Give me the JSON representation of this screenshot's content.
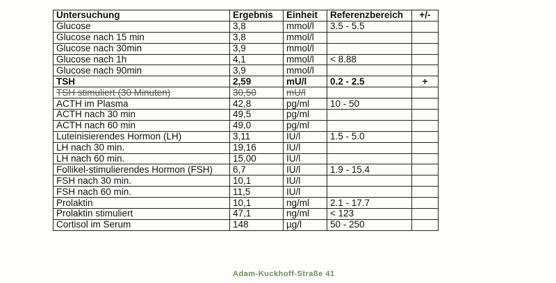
{
  "table": {
    "header": [
      "Untersuchung",
      "Ergebnis",
      "Einheit",
      "Referenzbereich",
      "+/-"
    ],
    "rows": [
      {
        "name": "Glucose",
        "result": "3,8",
        "unit": "mmol/l",
        "range": "3.5 - 5.5"
      },
      {
        "name": "Glucose nach 15 min",
        "result": "3,8",
        "unit": "mmol/l"
      },
      {
        "name": "Glucose nach 30min",
        "result": "3,9",
        "unit": "mmol/l"
      },
      {
        "name": "Glucose nach 1h",
        "result": "4,1",
        "unit": "mmol/l",
        "range": "< 8.88"
      },
      {
        "name": "Glucose nach 90min",
        "result": "3,9",
        "unit": "mmol/l"
      },
      {
        "name": "TSH",
        "result": "2,59",
        "unit": "mU/l",
        "range": "0.2 - 2.5",
        "flag": "+",
        "bold": true
      },
      {
        "name": "TSH stimuliert (30 Minuten)",
        "result": "30,50",
        "unit": "mU/l",
        "struck": true
      },
      {
        "name": "ACTH im Plasma",
        "result": "42,8",
        "unit": "pg/ml",
        "range": "10 - 50"
      },
      {
        "name": "ACTH nach 30 min",
        "result": "49,5",
        "unit": "pg/ml"
      },
      {
        "name": "ACTH nach 60 min",
        "result": "49,0",
        "unit": "pg/ml"
      },
      {
        "name": "Luteinisierendes Hormon (LH)",
        "result": "3,11",
        "unit": "IU/l",
        "range": "1.5 - 5.0"
      },
      {
        "name": "LH nach 30 min.",
        "result": "19,16",
        "unit": "IU/l"
      },
      {
        "name": "LH nach 60 min.",
        "result": "15,00",
        "unit": "IU/l"
      },
      {
        "name": "Follikel-stimulierendes Hormon (FSH)",
        "result": "6,7",
        "unit": "IU/l",
        "range": "1.9 - 15.4"
      },
      {
        "name": "FSH nach 30 min.",
        "result": "10,1",
        "unit": "IU/l"
      },
      {
        "name": "FSH nach 60 min.",
        "result": "11,5",
        "unit": "IU/l"
      },
      {
        "name": "Prolaktin",
        "result": "10,1",
        "unit": "ng/ml",
        "range": "2.1 - 17.7"
      },
      {
        "name": "Prolaktin stimuliert",
        "result": "47,1",
        "unit": "ng/ml",
        "range": "< 123"
      },
      {
        "name": "Cortisol im Serum",
        "result": "148",
        "unit": "µg/l",
        "range": "50 - 250"
      }
    ]
  },
  "footer": {
    "address": "Adam-Kuckhoff-Straße 41"
  }
}
